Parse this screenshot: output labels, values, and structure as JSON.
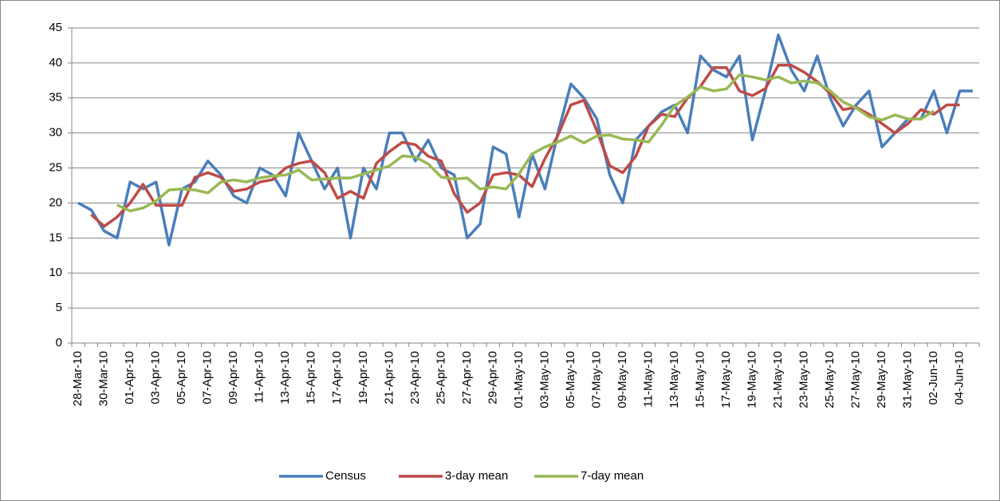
{
  "chart_data": {
    "type": "line",
    "categories": [
      "28-Mar-10",
      null,
      "30-Mar-10",
      null,
      "01-Apr-10",
      null,
      "03-Apr-10",
      null,
      "05-Apr-10",
      null,
      "07-Apr-10",
      null,
      "09-Apr-10",
      null,
      "11-Apr-10",
      null,
      "13-Apr-10",
      null,
      "15-Apr-10",
      null,
      "17-Apr-10",
      null,
      "19-Apr-10",
      null,
      "21-Apr-10",
      null,
      "23-Apr-10",
      null,
      "25-Apr-10",
      null,
      "27-Apr-10",
      null,
      "29-Apr-10",
      null,
      "01-May-10",
      null,
      "03-May-10",
      null,
      "05-May-10",
      null,
      "07-May-10",
      null,
      "09-May-10",
      null,
      "11-May-10",
      null,
      "13-May-10",
      null,
      "15-May-10",
      null,
      "17-May-10",
      null,
      "19-May-10",
      null,
      "21-May-10",
      null,
      "23-May-10",
      null,
      "25-May-10",
      null,
      "27-May-10",
      null,
      "29-May-10",
      null,
      "31-May-10",
      null,
      "02-Jun-10",
      null,
      "04-Jun-10",
      null
    ],
    "series": [
      {
        "name": "Census",
        "color": "#4a7ebb",
        "values": [
          20,
          19,
          16,
          15,
          23,
          22,
          23,
          14,
          22,
          23,
          26,
          24,
          21,
          20,
          25,
          24,
          21,
          30,
          26,
          22,
          25,
          15,
          25,
          22,
          30,
          30,
          26,
          29,
          25,
          24,
          15,
          17,
          28,
          27,
          18,
          27,
          22,
          30,
          37,
          35,
          32,
          24,
          20,
          29,
          31,
          33,
          34,
          30,
          41,
          39,
          38,
          41,
          29,
          36,
          44,
          39,
          36,
          41,
          35,
          31,
          34,
          36,
          28,
          30,
          32,
          32,
          36,
          30,
          36,
          36
        ]
      },
      {
        "name": "3-day mean",
        "color": "#be4b48",
        "values": [
          null,
          18.33,
          16.67,
          18,
          20,
          22.67,
          19.67,
          19.67,
          19.67,
          23.67,
          24.33,
          23.67,
          21.67,
          22,
          23,
          23.33,
          25,
          25.67,
          26,
          24.33,
          20.67,
          21.67,
          20.67,
          25.67,
          27.33,
          28.67,
          28.33,
          26.67,
          26,
          21.33,
          18.67,
          20,
          24,
          24.33,
          24,
          22.33,
          26.33,
          29.67,
          34,
          34.67,
          30.33,
          25.33,
          24.33,
          26.67,
          31,
          32.67,
          32.33,
          35,
          36.67,
          39.33,
          39.33,
          36,
          35.33,
          36.33,
          39.67,
          39.67,
          38.67,
          37.33,
          35.67,
          33.33,
          33.67,
          32.67,
          31.33,
          30,
          31.33,
          33.33,
          32.67,
          34,
          34,
          null
        ]
      },
      {
        "name": "7-day mean",
        "color": "#98b954",
        "values": [
          null,
          null,
          null,
          19.71,
          18.86,
          19.29,
          20.29,
          21.86,
          22,
          21.86,
          21.43,
          23,
          23.29,
          23,
          23.57,
          23.86,
          24,
          24.71,
          23.29,
          23.43,
          23.57,
          23.57,
          24.14,
          24.71,
          25.29,
          26.71,
          26.57,
          25.57,
          23.71,
          23.43,
          23.57,
          22,
          22.29,
          22,
          24.14,
          27,
          28,
          28.71,
          29.57,
          28.57,
          29.57,
          29.71,
          29.14,
          29,
          28.71,
          31.14,
          33.86,
          35.14,
          36.57,
          36,
          36.29,
          38.29,
          38,
          37.57,
          38,
          37.14,
          37.43,
          37.14,
          36,
          34.43,
          33.57,
          32.29,
          31.86,
          32.57,
          32,
          32,
          33.14,
          null,
          null,
          null
        ]
      }
    ],
    "ylim": [
      0,
      45
    ],
    "yticks": [
      0,
      5,
      10,
      15,
      20,
      25,
      30,
      35,
      40,
      45
    ],
    "grid": true,
    "legend": "bottom"
  }
}
